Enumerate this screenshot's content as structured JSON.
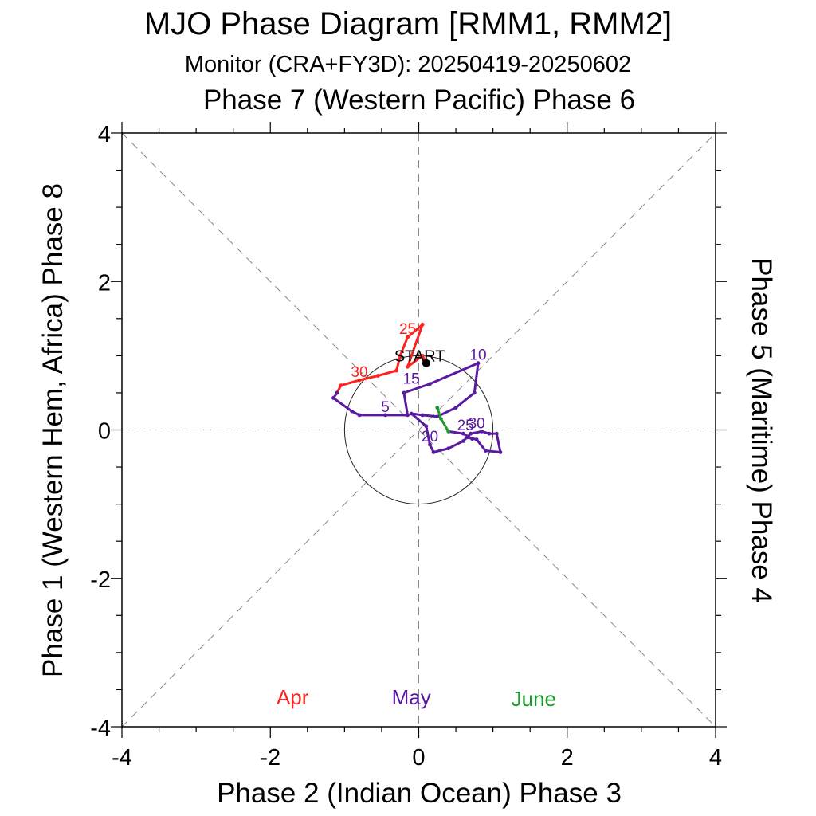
{
  "title": "MJO Phase Diagram [RMM1, RMM2]",
  "subtitle": "Monitor (CRA+FY3D): 20250419-20250602",
  "top_label": "Phase 7 (Western Pacific) Phase 6",
  "bottom_label": "Phase 2 (Indian Ocean) Phase 3",
  "left_label": "Phase 1 (Western Hem, Africa) Phase 8",
  "right_label": "Phase 5 (Maritime) Phase 4",
  "start_label": "START",
  "x_ticks": [
    "-4",
    "-2",
    "0",
    "2",
    "4"
  ],
  "y_ticks": [
    "4",
    "2",
    "0",
    "-2",
    "-4"
  ],
  "chart_data": {
    "type": "line",
    "title": "MJO Phase Diagram [RMM1, RMM2]",
    "subtitle": "Monitor (CRA+FY3D): 20250419-20250602",
    "xlabel": "Phase 2 (Indian Ocean) Phase 3",
    "ylabel": "Phase 1 (Western Hem, Africa) Phase 8",
    "xlim": [
      -4,
      4
    ],
    "ylim": [
      -4,
      4
    ],
    "unit_circle_radius": 1,
    "grid": "dashed diagonals and axes",
    "series": [
      {
        "name": "Apr",
        "color": "#ff2020",
        "points": [
          [
            0.1,
            0.9
          ],
          [
            0.05,
            1.0
          ],
          [
            -0.15,
            0.85
          ],
          [
            0.05,
            1.42
          ],
          [
            -0.15,
            1.25
          ],
          [
            -0.25,
            1.0
          ],
          [
            -0.3,
            0.8
          ],
          [
            -0.55,
            0.73
          ],
          [
            -0.8,
            0.67
          ],
          [
            -1.05,
            0.6
          ],
          [
            -1.1,
            0.5
          ]
        ],
        "day_labels": [
          {
            "text": "25",
            "x": -0.15,
            "y": 1.25
          },
          {
            "text": "30",
            "x": -0.8,
            "y": 0.67
          }
        ]
      },
      {
        "name": "May",
        "color": "#5a1aa0",
        "points": [
          [
            -1.1,
            0.5
          ],
          [
            -1.15,
            0.43
          ],
          [
            -0.9,
            0.25
          ],
          [
            -0.8,
            0.2
          ],
          [
            -0.45,
            0.2
          ],
          [
            -0.15,
            0.2
          ],
          [
            -0.2,
            0.5
          ],
          [
            0.15,
            0.62
          ],
          [
            0.8,
            0.9
          ],
          [
            0.75,
            0.5
          ],
          [
            0.5,
            0.3
          ],
          [
            0.25,
            0.18
          ],
          [
            0.05,
            0.2
          ],
          [
            -0.1,
            0.22
          ],
          [
            0.1,
            0.05
          ],
          [
            0.15,
            -0.2
          ],
          [
            0.2,
            -0.3
          ],
          [
            0.4,
            -0.25
          ],
          [
            0.6,
            -0.15
          ],
          [
            0.7,
            -0.05
          ],
          [
            0.85,
            -0.02
          ],
          [
            0.95,
            -0.05
          ],
          [
            1.05,
            -0.05
          ],
          [
            1.1,
            -0.3
          ],
          [
            0.9,
            -0.28
          ],
          [
            0.78,
            -0.13
          ],
          [
            0.66,
            -0.1
          ],
          [
            0.72,
            -0.12
          ],
          [
            0.6,
            -0.05
          ],
          [
            0.4,
            -0.02
          ]
        ],
        "day_labels": [
          {
            "text": "5",
            "x": -0.45,
            "y": 0.2
          },
          {
            "text": "10",
            "x": 0.8,
            "y": 0.9
          },
          {
            "text": "15",
            "x": -0.1,
            "y": 0.58
          },
          {
            "text": "20",
            "x": 0.15,
            "y": -0.2
          },
          {
            "text": "25",
            "x": 0.63,
            "y": -0.05
          },
          {
            "text": "30",
            "x": 0.78,
            "y": -0.02
          }
        ]
      },
      {
        "name": "June",
        "color": "#1f9a2e",
        "points": [
          [
            0.4,
            -0.02
          ],
          [
            0.3,
            0.15
          ],
          [
            0.25,
            0.3
          ]
        ],
        "day_labels": []
      }
    ],
    "legend": [
      {
        "label": "Apr",
        "color": "#ff2020"
      },
      {
        "label": "May",
        "color": "#5a1aa0"
      },
      {
        "label": "June",
        "color": "#1f9a2e"
      }
    ],
    "legend_placement": "bottom inside plot"
  }
}
